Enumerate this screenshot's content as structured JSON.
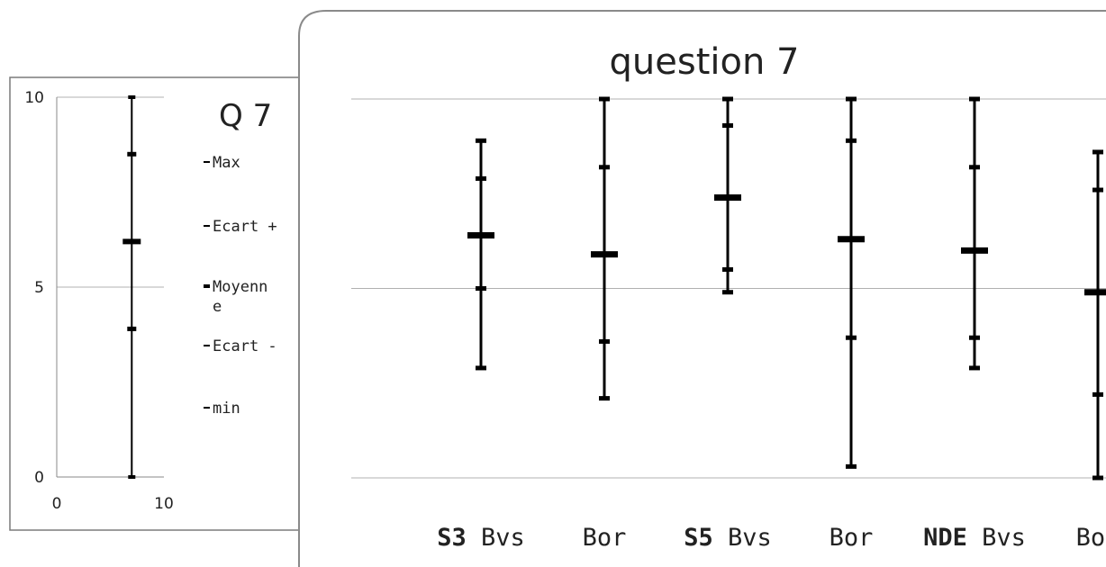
{
  "chart_data": [
    {
      "type": "stock-error-bar",
      "title": "Q 7",
      "x_ticks": [
        "0",
        "10"
      ],
      "y_ticks": [
        "0",
        "5",
        "10"
      ],
      "xlim": [
        0,
        10
      ],
      "ylim": [
        0,
        10
      ],
      "legend": [
        "Max",
        "Ecart +",
        "Moyenne",
        "Ecart -",
        "min"
      ],
      "points": [
        {
          "x": 7,
          "max": 10,
          "ecart_plus": 8.5,
          "moyenne": 6.2,
          "ecart_minus": 3.9,
          "min": 0
        }
      ]
    },
    {
      "type": "stock-error-bar",
      "title": "question 7",
      "ylim": [
        0,
        10
      ],
      "gridlines": [
        0,
        5,
        10
      ],
      "categories": [
        {
          "bold": "S3",
          "rest": "Bvs",
          "max": 8.9,
          "ecart_plus": 7.9,
          "moyenne": 6.4,
          "ecart_minus": 5.0,
          "min": 2.9
        },
        {
          "bold": "",
          "rest": "Bor",
          "max": 10,
          "ecart_plus": 8.2,
          "moyenne": 5.9,
          "ecart_minus": 3.6,
          "min": 2.1
        },
        {
          "bold": "S5",
          "rest": "Bvs",
          "max": 10,
          "ecart_plus": 9.3,
          "moyenne": 7.4,
          "ecart_minus": 5.5,
          "min": 4.9
        },
        {
          "bold": "",
          "rest": "Bor",
          "max": 10,
          "ecart_plus": 8.9,
          "moyenne": 6.3,
          "ecart_minus": 3.7,
          "min": 0.3
        },
        {
          "bold": "NDE",
          "rest": "Bvs",
          "max": 10,
          "ecart_plus": 8.2,
          "moyenne": 6.0,
          "ecart_minus": 3.7,
          "min": 2.9
        },
        {
          "bold": "",
          "rest": "Bor",
          "max": 8.6,
          "ecart_plus": 7.6,
          "moyenne": 4.9,
          "ecart_minus": 2.2,
          "min": 0
        }
      ]
    }
  ],
  "colors": {
    "line": "#000000",
    "grid": "#b0b0b0",
    "frame": "#7a7a7a"
  }
}
